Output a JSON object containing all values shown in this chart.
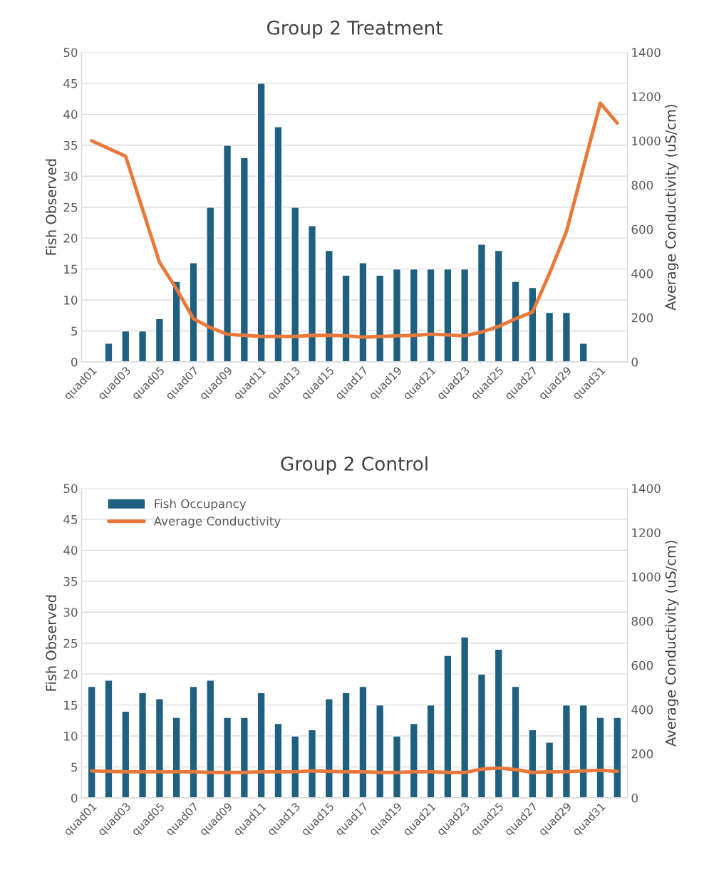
{
  "chart_data": [
    {
      "type": "bar",
      "title": "Group 2 Treatment",
      "ylabel": "Fish Observed",
      "y2label": "Average Conductivity (uS/cm)",
      "categories": [
        "quad01",
        null,
        "quad03",
        null,
        "quad05",
        null,
        "quad07",
        null,
        "quad09",
        null,
        "quad11",
        null,
        "quad13",
        null,
        "quad15",
        null,
        "quad17",
        null,
        "quad19",
        null,
        "quad21",
        null,
        "quad23",
        null,
        "quad25",
        null,
        "quad27",
        null,
        "quad29",
        null,
        "quad31",
        null
      ],
      "series": [
        {
          "color": "#1f5f7f",
          "values": [
            null,
            3,
            5,
            5,
            7,
            13,
            16,
            25,
            35,
            33,
            45,
            38,
            25,
            22,
            18,
            14,
            16,
            14,
            15,
            15,
            15,
            15,
            15,
            19,
            18,
            13,
            12,
            8,
            8,
            3,
            null,
            null
          ]
        },
        {
          "type": "line",
          "axis": "y2",
          "color": "#e8793a",
          "values": [
            1000,
            965,
            930,
            690,
            450,
            330,
            195,
            155,
            125,
            120,
            115,
            115,
            115,
            120,
            120,
            118,
            112,
            115,
            118,
            120,
            125,
            122,
            118,
            135,
            160,
            195,
            225,
            400,
            590,
            880,
            1170,
            1080
          ]
        }
      ],
      "ylim": [
        0,
        50
      ],
      "yticks": [
        0,
        5,
        10,
        15,
        20,
        25,
        30,
        35,
        40,
        45,
        50
      ],
      "y2lim": [
        0,
        1400
      ],
      "y2ticks": [
        0,
        200,
        400,
        600,
        800,
        1000,
        1200,
        1400
      ],
      "grid": "y",
      "legend": false,
      "marker": "none",
      "line_style": "solid"
    },
    {
      "type": "bar",
      "title": "Group 2 Control",
      "ylabel": "Fish Observed",
      "y2label": "Average Conductivity (uS/cm)",
      "categories": [
        "quad01",
        null,
        "quad03",
        null,
        "quad05",
        null,
        "quad07",
        null,
        "quad09",
        null,
        "quad11",
        null,
        "quad13",
        null,
        "quad15",
        null,
        "quad17",
        null,
        "quad19",
        null,
        "quad21",
        null,
        "quad23",
        null,
        "quad25",
        null,
        "quad27",
        null,
        "quad29",
        null,
        "quad31",
        null
      ],
      "series": [
        {
          "name": "Fish Occupancy",
          "color": "#1f5f7f",
          "values": [
            18,
            19,
            14,
            17,
            16,
            13,
            18,
            19,
            13,
            13,
            17,
            12,
            10,
            11,
            16,
            17,
            18,
            15,
            10,
            12,
            15,
            23,
            26,
            20,
            24,
            18,
            11,
            9,
            15,
            15,
            13,
            13
          ]
        },
        {
          "type": "line",
          "axis": "y2",
          "name": "Average Conductivity",
          "color": "#e8793a",
          "values": [
            122,
            120,
            118,
            118,
            118,
            118,
            118,
            115,
            115,
            115,
            118,
            118,
            118,
            122,
            120,
            118,
            118,
            115,
            115,
            118,
            118,
            115,
            115,
            130,
            135,
            128,
            115,
            118,
            118,
            122,
            125,
            120
          ]
        }
      ],
      "ylim": [
        0,
        50
      ],
      "yticks": [
        0,
        5,
        10,
        15,
        20,
        25,
        30,
        35,
        40,
        45,
        50
      ],
      "y2lim": [
        0,
        1400
      ],
      "y2ticks": [
        0,
        200,
        400,
        600,
        800,
        1000,
        1200,
        1400
      ],
      "grid": "y",
      "legend": "top left",
      "marker": "none",
      "line_style": "solid"
    }
  ]
}
